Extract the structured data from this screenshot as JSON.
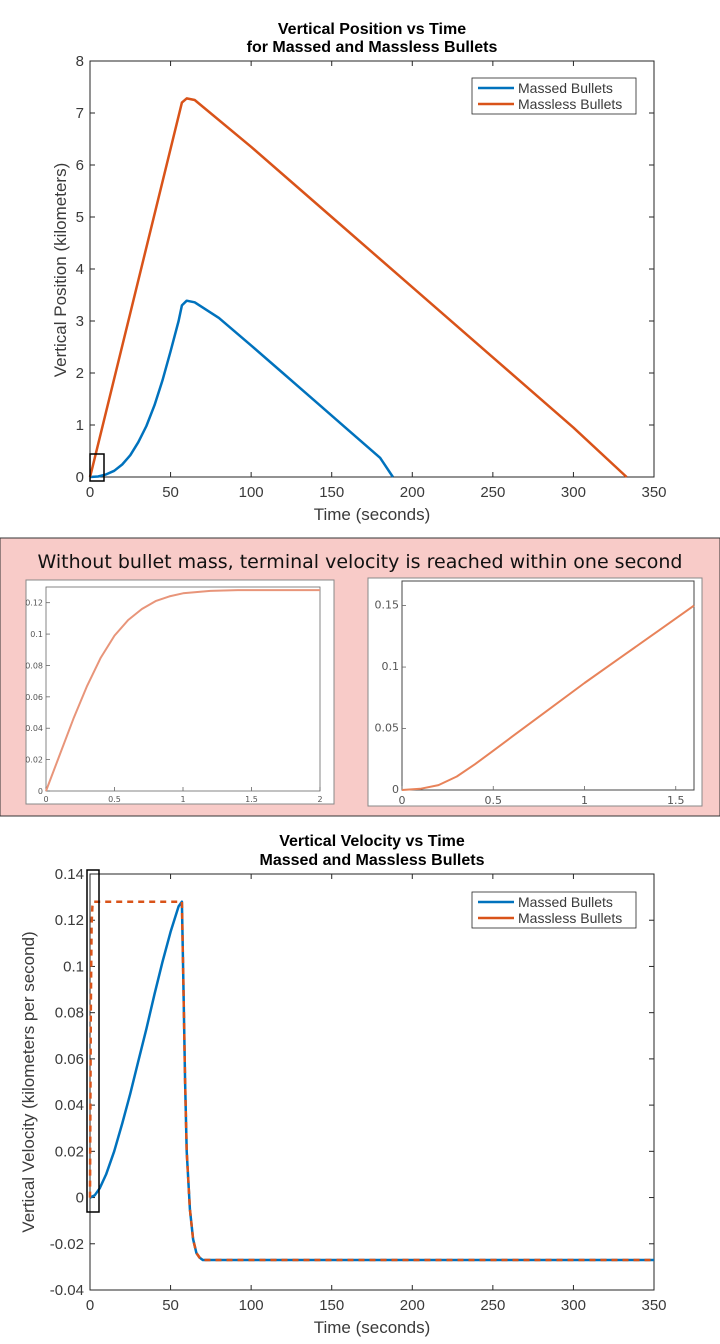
{
  "chart_data": [
    {
      "type": "line",
      "title": "Vertical Position vs Time",
      "subtitle": "for Massed and Massless Bullets",
      "xlabel": "Time (seconds)",
      "ylabel": "Vertical Position (kilometers)",
      "xlim": [
        0,
        350
      ],
      "ylim": [
        0,
        8
      ],
      "xticks": [
        0,
        50,
        100,
        150,
        200,
        250,
        300,
        350
      ],
      "yticks": [
        0,
        1,
        2,
        3,
        4,
        5,
        6,
        7,
        8
      ],
      "grid": false,
      "legend_position": "top-right",
      "series": [
        {
          "name": "Massed Bullets",
          "color": "#0072bd",
          "x": [
            0,
            5,
            10,
            15,
            20,
            25,
            30,
            35,
            40,
            45,
            50,
            55,
            57,
            60,
            65,
            80,
            100,
            120,
            140,
            160,
            180,
            188
          ],
          "y": [
            0,
            0.01,
            0.05,
            0.12,
            0.24,
            0.42,
            0.67,
            0.98,
            1.38,
            1.86,
            2.42,
            3.0,
            3.3,
            3.39,
            3.36,
            3.06,
            2.53,
            1.99,
            1.45,
            0.91,
            0.37,
            0
          ]
        },
        {
          "name": "Massless Bullets",
          "color": "#d95319",
          "x": [
            0,
            1,
            57,
            60,
            65,
            100,
            150,
            200,
            250,
            300,
            333
          ],
          "y": [
            0,
            0.12,
            7.2,
            7.28,
            7.25,
            6.35,
            5.0,
            3.65,
            2.3,
            0.95,
            0
          ]
        }
      ],
      "annotations": [
        "highlight box around 0-8 s, 0-0.4 km"
      ]
    },
    {
      "type": "line",
      "title": "Vertical Velocity vs Time",
      "subtitle": "Massed and Massless Bullets",
      "xlabel": "Time (seconds)",
      "ylabel": "Vertical Velocity (kilometers per second)",
      "xlim": [
        0,
        350
      ],
      "ylim": [
        -0.04,
        0.14
      ],
      "xticks": [
        0,
        50,
        100,
        150,
        200,
        250,
        300,
        350
      ],
      "yticks": [
        -0.04,
        -0.02,
        0,
        0.02,
        0.04,
        0.06,
        0.08,
        0.1,
        0.12,
        0.14
      ],
      "grid": false,
      "legend_position": "top-right",
      "series": [
        {
          "name": "Massed Bullets",
          "color": "#0072bd",
          "x": [
            0,
            3,
            6,
            10,
            15,
            20,
            25,
            30,
            35,
            40,
            45,
            50,
            55,
            57,
            58,
            59,
            60,
            62,
            64,
            66,
            68,
            70,
            75,
            80,
            100,
            150,
            200,
            250,
            300,
            350
          ],
          "y": [
            0,
            0.001,
            0.004,
            0.01,
            0.02,
            0.032,
            0.045,
            0.059,
            0.073,
            0.088,
            0.102,
            0.115,
            0.126,
            0.128,
            0.09,
            0.05,
            0.02,
            -0.005,
            -0.018,
            -0.024,
            -0.026,
            -0.027,
            -0.027,
            -0.027,
            -0.027,
            -0.027,
            -0.027,
            -0.027,
            -0.027,
            -0.027
          ]
        },
        {
          "name": "Massless Bullets",
          "color": "#d95319",
          "x": [
            0,
            0.5,
            1,
            1.5,
            2,
            57,
            58,
            59,
            60,
            62,
            64,
            66,
            68,
            70,
            75,
            80,
            100,
            150,
            200,
            250,
            300,
            350
          ],
          "y": [
            0,
            0.08,
            0.118,
            0.126,
            0.128,
            0.128,
            0.09,
            0.05,
            0.02,
            -0.005,
            -0.018,
            -0.024,
            -0.026,
            -0.027,
            -0.027,
            -0.027,
            -0.027,
            -0.027,
            -0.027,
            -0.027,
            -0.027,
            -0.027
          ]
        }
      ],
      "annotations": [
        "highlight box around 0-5 s, -0.007-0.13 km/s"
      ]
    },
    {
      "type": "line",
      "xlim": [
        0,
        2
      ],
      "ylim": [
        0,
        0.13
      ],
      "xticks": [
        0,
        0.5,
        1,
        1.5,
        2
      ],
      "xtick_labels": [
        "0",
        "0.5",
        "1",
        "1.5",
        "2"
      ],
      "yticks": [
        0,
        0.02,
        0.04,
        0.06,
        0.08,
        0.1,
        0.12
      ],
      "ytick_labels": [
        "0",
        "0.02",
        "0.04",
        "0.06",
        "0.08",
        "0.1",
        "0.12"
      ],
      "series": [
        {
          "color": "#e8957a",
          "x": [
            0,
            0.1,
            0.2,
            0.3,
            0.4,
            0.5,
            0.6,
            0.7,
            0.8,
            0.9,
            1.0,
            1.2,
            1.4,
            1.6,
            1.8,
            2.0
          ],
          "y": [
            0,
            0.023,
            0.046,
            0.067,
            0.085,
            0.099,
            0.109,
            0.116,
            0.121,
            0.124,
            0.126,
            0.1275,
            0.128,
            0.128,
            0.128,
            0.128
          ]
        }
      ]
    },
    {
      "type": "line",
      "xlim": [
        0,
        1.6
      ],
      "ylim": [
        0,
        0.17
      ],
      "xticks": [
        0,
        0.5,
        1,
        1.5
      ],
      "xtick_labels": [
        "0",
        "0.5",
        "1",
        "1.5"
      ],
      "yticks": [
        0,
        0.05,
        0.1,
        0.15
      ],
      "ytick_labels": [
        "0",
        "0.05",
        "0.1",
        "0.15"
      ],
      "series": [
        {
          "color": "#e8835a",
          "x": [
            0,
            0.1,
            0.2,
            0.3,
            0.4,
            0.5,
            0.6,
            0.8,
            1.0,
            1.2,
            1.4,
            1.6
          ],
          "y": [
            0,
            0.001,
            0.004,
            0.011,
            0.021,
            0.032,
            0.043,
            0.065,
            0.087,
            0.108,
            0.129,
            0.15
          ]
        }
      ]
    }
  ],
  "banner": {
    "text": "Without bullet mass, terminal velocity is reached within one second",
    "background": "#f8cbc8"
  }
}
